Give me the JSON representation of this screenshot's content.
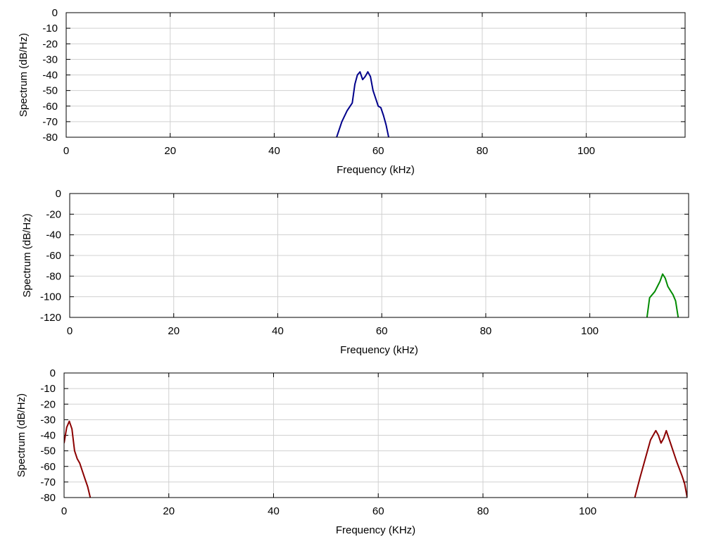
{
  "chart_data": [
    {
      "type": "line",
      "xlabel": "Frequency (kHz)",
      "ylabel": "Spectrum (dB/Hz)",
      "xlim": [
        0,
        119
      ],
      "ylim": [
        -80,
        0
      ],
      "xticks": [
        "0",
        "20",
        "40",
        "60",
        "80",
        "100"
      ],
      "yticks": [
        "0",
        "-10",
        "-20",
        "-30",
        "-40",
        "-50",
        "-60",
        "-70",
        "-80"
      ],
      "grid": true,
      "series": [
        {
          "color": "#00008b",
          "x": [
            52,
            53,
            54,
            55,
            55.5,
            56,
            56.5,
            57,
            57.5,
            58,
            58.5,
            59,
            59.5,
            60,
            60.5,
            61,
            61.5,
            62
          ],
          "y": [
            -80,
            -70,
            -63,
            -58,
            -46,
            -40,
            -38,
            -43,
            -41,
            -38,
            -41,
            -50,
            -55,
            -60,
            -61,
            -66,
            -72,
            -80
          ]
        }
      ]
    },
    {
      "type": "line",
      "xlabel": "Frequency (kHz)",
      "ylabel": "Spectrum (dB/Hz)",
      "xlim": [
        0,
        119
      ],
      "ylim": [
        -120,
        0
      ],
      "xticks": [
        "0",
        "20",
        "40",
        "60",
        "80",
        "100"
      ],
      "yticks": [
        "0",
        "-20",
        "-40",
        "-60",
        "-80",
        "-100",
        "-120"
      ],
      "grid": true,
      "series": [
        {
          "color": "#008b00",
          "x": [
            111,
            111.5,
            112,
            112.5,
            113,
            113.5,
            114,
            114.5,
            115,
            115.5,
            116,
            116.5,
            117
          ],
          "y": [
            -120,
            -101,
            -98,
            -95,
            -90,
            -85,
            -78,
            -82,
            -90,
            -94,
            -98,
            -104,
            -120
          ]
        }
      ]
    },
    {
      "type": "line",
      "xlabel": "Frequency (KHz)",
      "ylabel": "Spectrum (dB/Hz)",
      "xlim": [
        0,
        119
      ],
      "ylim": [
        -80,
        0
      ],
      "xticks": [
        "0",
        "20",
        "40",
        "60",
        "80",
        "100"
      ],
      "yticks": [
        "0",
        "-10",
        "-20",
        "-30",
        "-40",
        "-50",
        "-60",
        "-70",
        "-80"
      ],
      "grid": true,
      "series": [
        {
          "color": "#8b0000",
          "x": [
            0,
            0.5,
            1,
            1.5,
            2,
            2.5,
            3,
            3.5,
            4,
            4.5,
            5
          ],
          "y": [
            -45,
            -35,
            -31,
            -36,
            -50,
            -55,
            -58,
            -63,
            -68,
            -73,
            -80
          ]
        },
        {
          "color": "#8b0000",
          "x": [
            109,
            110,
            111,
            112,
            113,
            113.5,
            114,
            114.5,
            115,
            116,
            117,
            118,
            118.5,
            119
          ],
          "y": [
            -80,
            -67,
            -55,
            -43,
            -37,
            -40,
            -45,
            -42,
            -37,
            -47,
            -57,
            -66,
            -71,
            -80
          ]
        }
      ]
    }
  ]
}
